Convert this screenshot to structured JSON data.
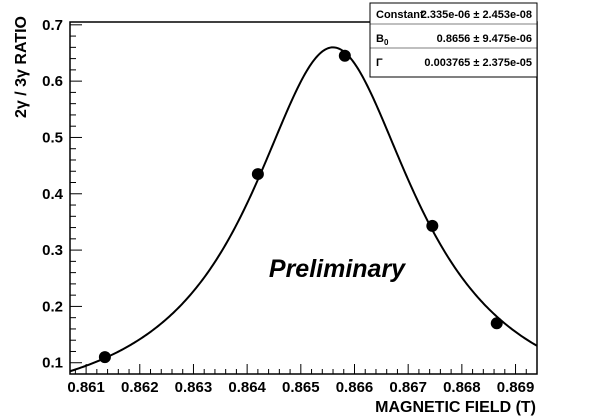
{
  "chart_data": {
    "type": "scatter",
    "title": "",
    "xlabel": "MAGNETIC FIELD (T)",
    "ylabel": "2γ / 3γ RATIO",
    "xlim": [
      0.8607,
      0.8694
    ],
    "ylim": [
      0.08,
      0.705
    ],
    "xticks": [
      0.861,
      0.862,
      0.863,
      0.864,
      0.865,
      0.866,
      0.867,
      0.868,
      0.869
    ],
    "xtick_labels": [
      "0.861",
      "0.862",
      "0.863",
      "0.864",
      "0.865",
      "0.866",
      "0.867",
      "0.868",
      "0.869"
    ],
    "yticks": [
      0.1,
      0.2,
      0.3,
      0.4,
      0.5,
      0.6,
      0.7
    ],
    "ytick_labels": [
      "0.1",
      "0.2",
      "0.3",
      "0.4",
      "0.5",
      "0.6",
      "0.7"
    ],
    "grid": false,
    "points": {
      "x": [
        0.86135,
        0.8642,
        0.86582,
        0.86745,
        0.86865
      ],
      "y": [
        0.11,
        0.435,
        0.645,
        0.343,
        0.17
      ]
    },
    "fit": {
      "type": "lorentzian",
      "peak_y": 0.66,
      "center": 0.8656,
      "gamma": 0.003765
    },
    "annotation": "Preliminary",
    "stats": [
      {
        "name": "Constant",
        "value": "2.335e-06 ± 2.453e-08"
      },
      {
        "name": "B",
        "sub": "0",
        "value": "0.8656 ± 9.475e-06"
      },
      {
        "name": "Γ",
        "value": "0.003765 ± 2.375e-05"
      }
    ]
  }
}
